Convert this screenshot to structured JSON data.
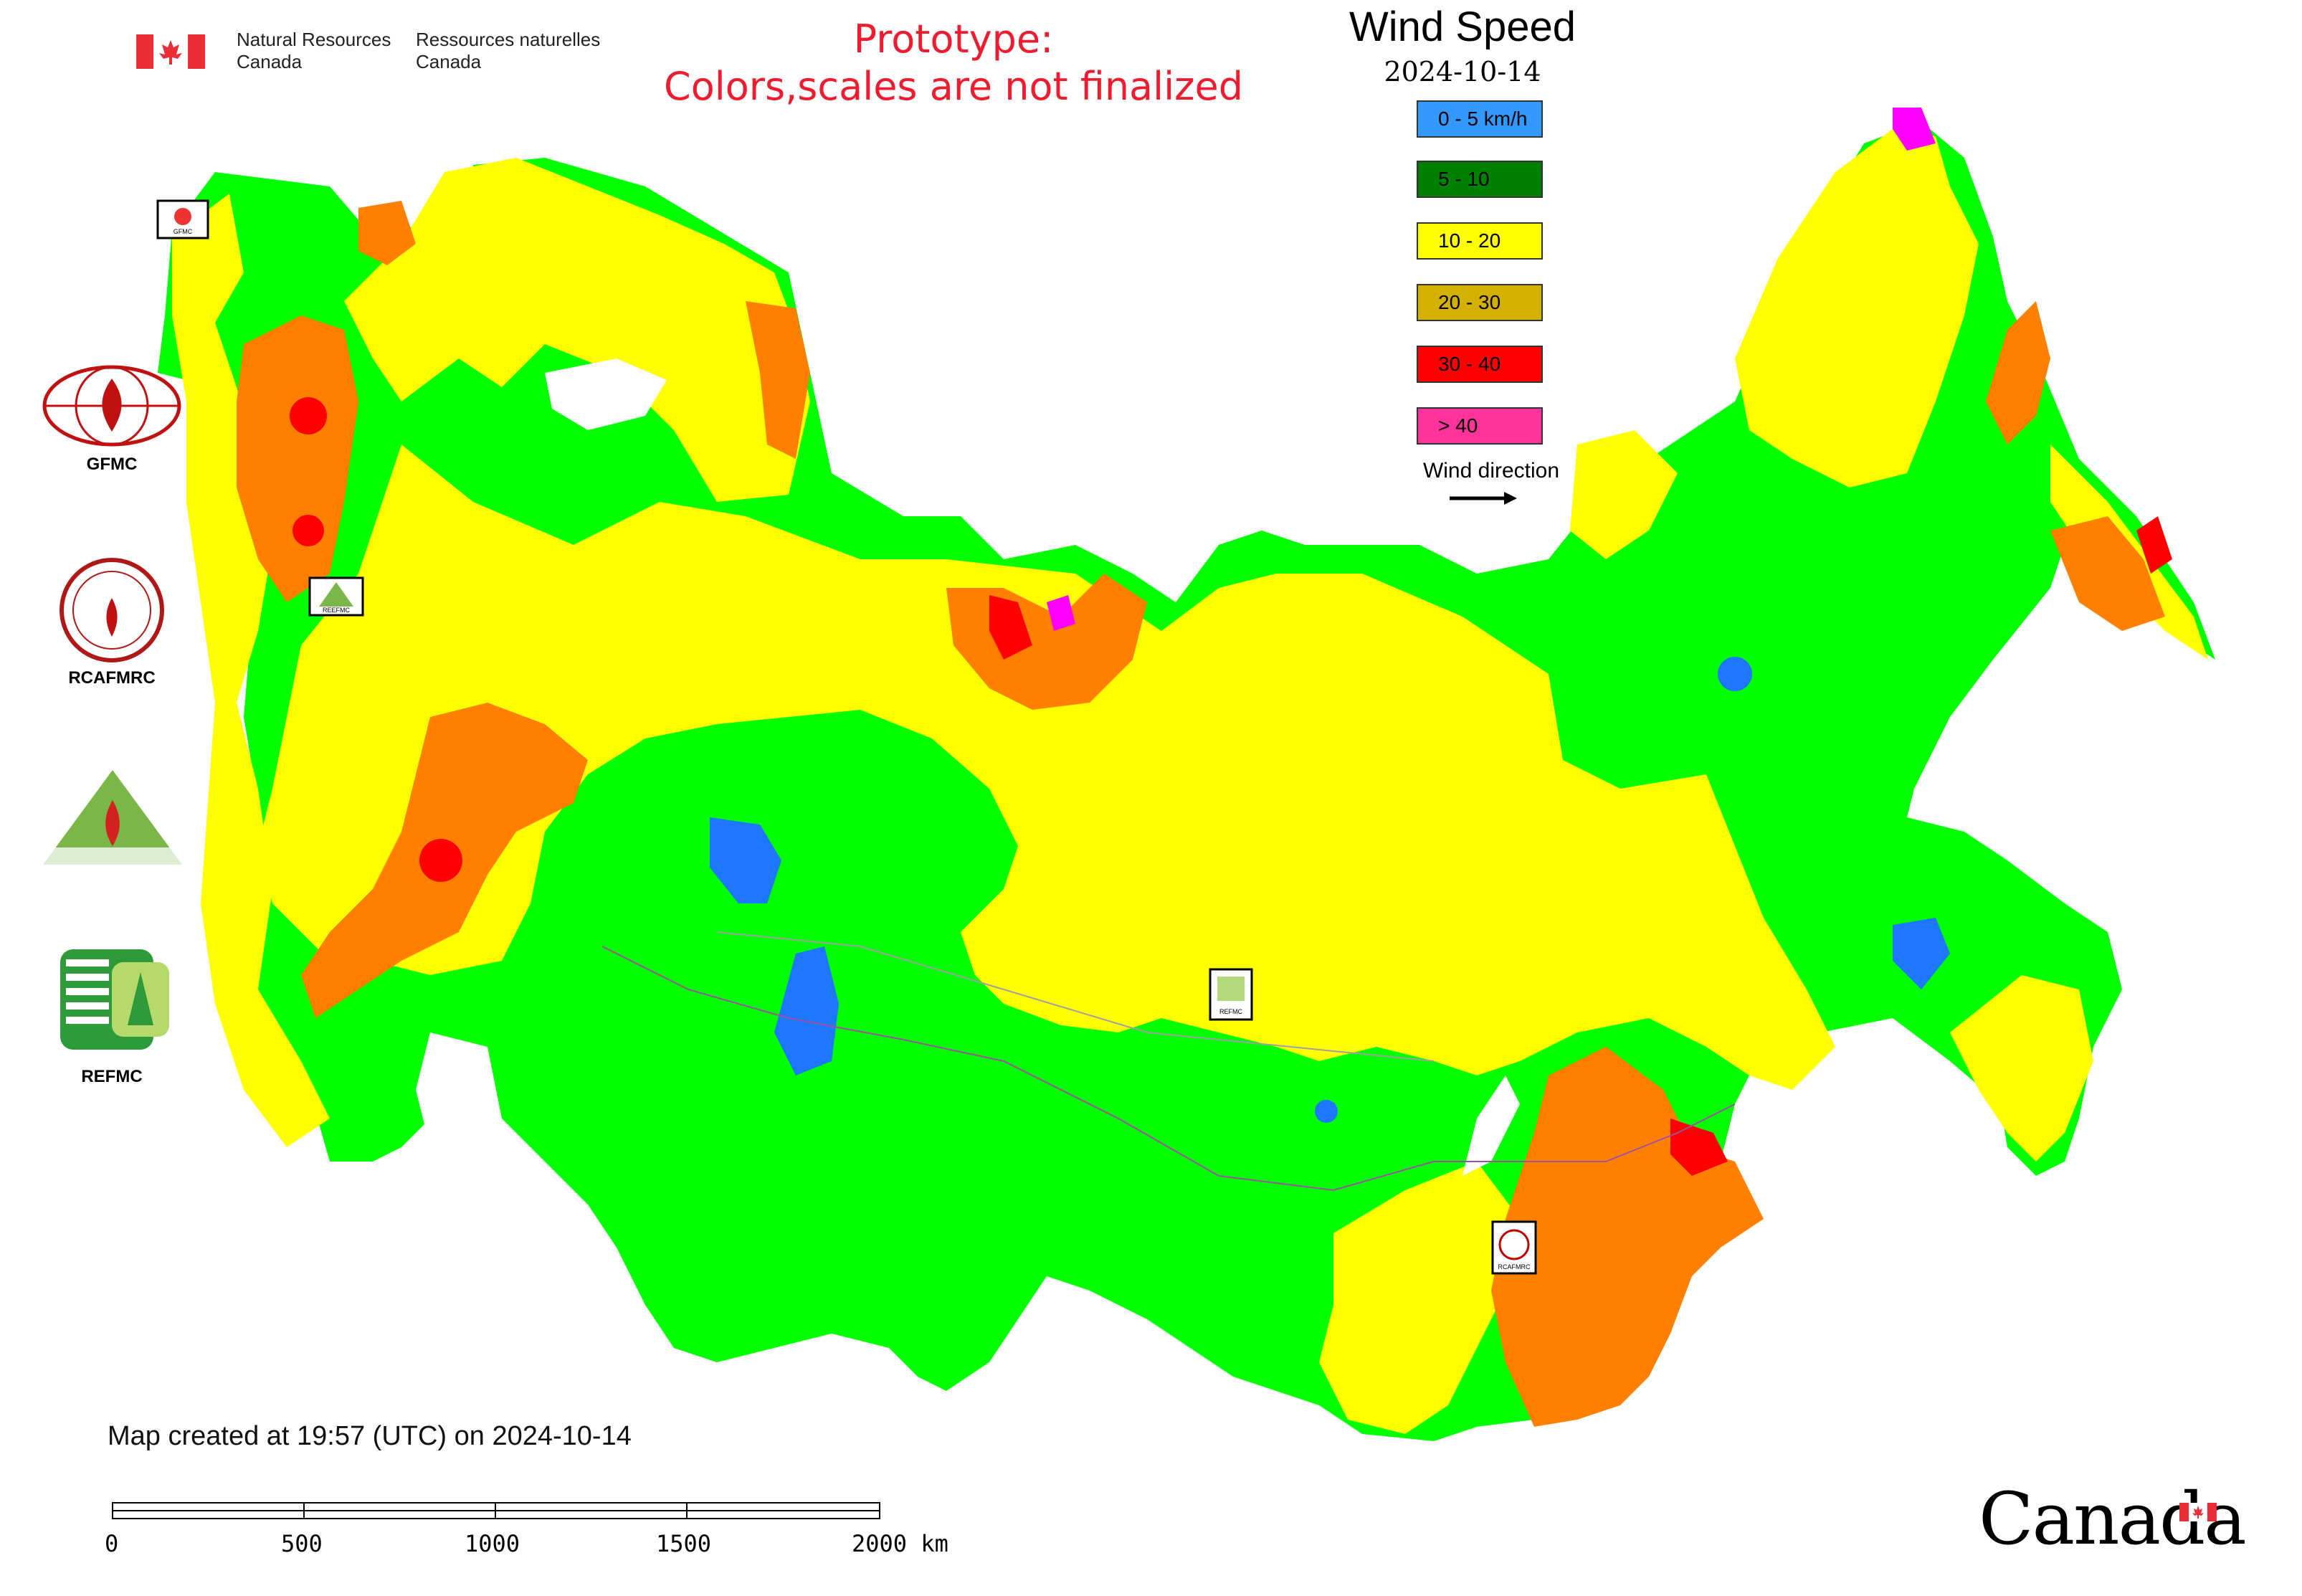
{
  "header": {
    "department_en": "Natural Resources\nCanada",
    "department_fr": "Ressources naturelles\nCanada",
    "prototype_line1": "Prototype:",
    "prototype_line2": "Colors,scales are not finalized"
  },
  "legend": {
    "title": "Wind Speed",
    "date": "2024-10-14",
    "items": [
      {
        "label": "0 - 5 km/h",
        "color": "#3399ff"
      },
      {
        "label": "5 - 10",
        "color": "#008000"
      },
      {
        "label": "10 - 20",
        "color": "#ffff00"
      },
      {
        "label": "20 - 30",
        "color": "#d4b000"
      },
      {
        "label": "30 - 40",
        "color": "#ff0000"
      },
      {
        "label": "> 40",
        "color": "#ff3399"
      }
    ],
    "wind_direction_label": "Wind direction"
  },
  "map_colors": {
    "calm": "#1e78ff",
    "light": "#00ff00",
    "moderate": "#ffff00",
    "strong": "#ff8000",
    "very_strong": "#ff0000",
    "extreme": "#ff00ff",
    "border": "#c060c0"
  },
  "logos": [
    {
      "name": "GFMC",
      "label": "GFMC"
    },
    {
      "name": "RCAFMRC",
      "label": "RCAFMRC"
    },
    {
      "name": "REEFMC",
      "label": "REEFMC"
    },
    {
      "name": "REFMC",
      "label": "REFMC"
    }
  ],
  "map_markers": [
    {
      "label": "GFMC"
    },
    {
      "label": "REEFMC"
    },
    {
      "label": "REFMC"
    },
    {
      "label": "RCAFMRC"
    }
  ],
  "footer": {
    "created": "Map created at 19:57 (UTC) on 2024-10-14",
    "scale_labels": [
      "0",
      "500",
      "1000",
      "1500",
      "2000 km"
    ],
    "wordmark": "Canada"
  }
}
